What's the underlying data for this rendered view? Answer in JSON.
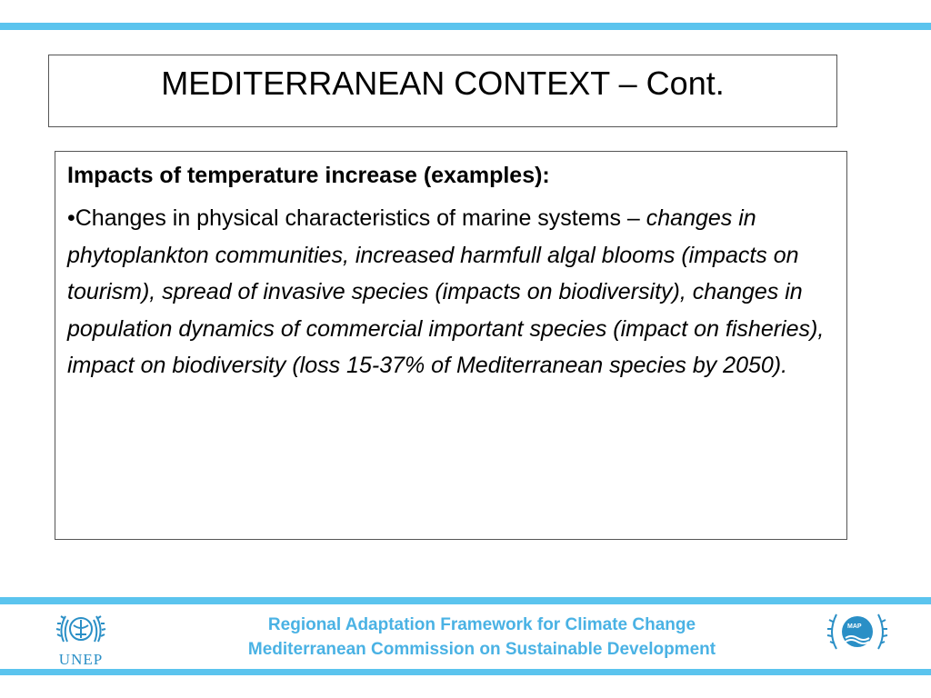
{
  "slide": {
    "title": "MEDITERRANEAN CONTEXT – Cont.",
    "heading": "Impacts of temperature increase (examples):",
    "bullet_intro": "•Changes in physical characteristics of marine systems – ",
    "bullet_details": "changes in phytoplankton communities, increased harmfull algal blooms (impacts on tourism), spread of invasive species (impacts on biodiversity), changes in population dynamics of commercial important species (impact on fisheries), impact on biodiversity (loss 15-37% of Mediterranean species by 2050)."
  },
  "footer": {
    "line1": "Regional Adaptation Framework for Climate Change",
    "line2": "Mediterranean Commission on Sustainable Development",
    "left_logo_text": "UNEP",
    "right_logo_text": "MAP"
  },
  "colors": {
    "accent_bar": "#5bc4ee",
    "footer_text": "#4ab2e4",
    "logo_blue": "#2a8fc6"
  },
  "icons": {
    "left_logo": "unep-logo-icon",
    "right_logo": "map-logo-icon"
  }
}
